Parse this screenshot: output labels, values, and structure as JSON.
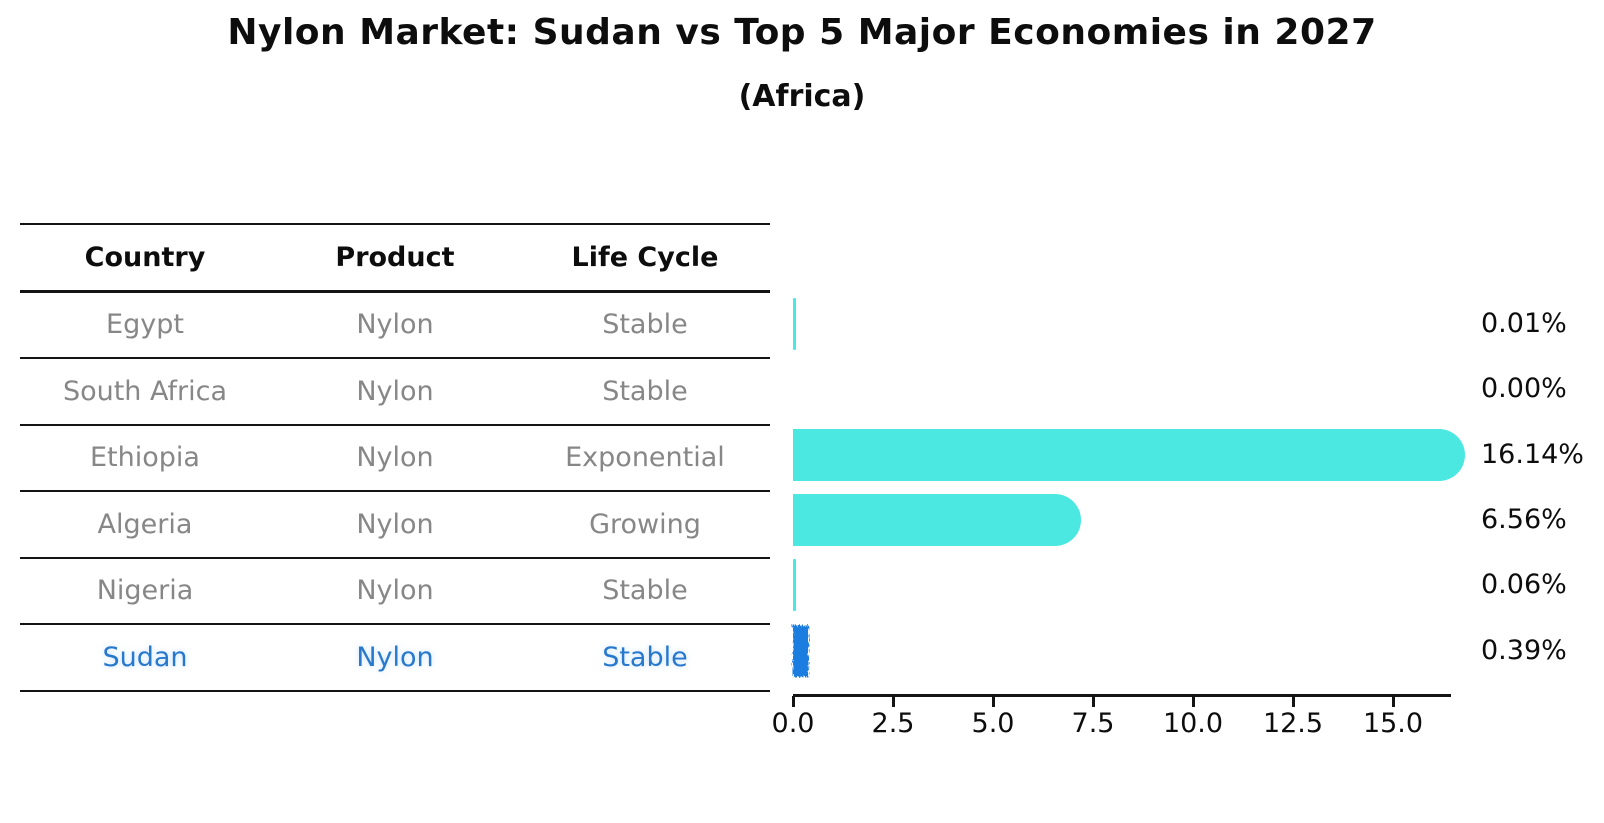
{
  "figure": {
    "title": "Nylon Market: Sudan vs Top 5 Major Economies in 2027",
    "subtitle": "(Africa)"
  },
  "colors": {
    "bar": "#4be8e1",
    "highlight_bar": "#1e7de0",
    "highlight_text": "#2878cc",
    "row_text": "#878787",
    "ink": "#141414"
  },
  "table": {
    "headers": [
      "Country",
      "Product",
      "Life Cycle"
    ],
    "rows": [
      {
        "country": "Egypt",
        "product": "Nylon",
        "life_cycle": "Stable",
        "highlight": false
      },
      {
        "country": "South Africa",
        "product": "Nylon",
        "life_cycle": "Stable",
        "highlight": false
      },
      {
        "country": "Ethiopia",
        "product": "Nylon",
        "life_cycle": "Exponential",
        "highlight": false
      },
      {
        "country": "Algeria",
        "product": "Nylon",
        "life_cycle": "Growing",
        "highlight": false
      },
      {
        "country": "Nigeria",
        "product": "Nylon",
        "life_cycle": "Stable",
        "highlight": false
      },
      {
        "country": "Sudan",
        "product": "Nylon",
        "life_cycle": "Stable",
        "highlight": true
      }
    ]
  },
  "chart_data": {
    "type": "bar",
    "orientation": "horizontal",
    "title": "Nylon Market: Sudan vs Top 5 Major Economies in 2027",
    "subtitle": "(Africa)",
    "categories": [
      "Egypt",
      "South Africa",
      "Ethiopia",
      "Algeria",
      "Nigeria",
      "Sudan"
    ],
    "values": [
      0.01,
      0.0,
      16.14,
      6.56,
      0.06,
      0.39
    ],
    "labels": [
      "0.01%",
      "0.00%",
      "16.14%",
      "6.56%",
      "0.06%",
      "0.39%"
    ],
    "highlight_category": "Sudan",
    "x_ticks": [
      "0.0",
      "2.5",
      "5.0",
      "7.5",
      "10.0",
      "12.5",
      "15.0"
    ],
    "x_tick_values": [
      0,
      2.5,
      5,
      7.5,
      10,
      12.5,
      15
    ],
    "xlim": [
      0,
      16.7
    ],
    "grid": false,
    "legend": false,
    "value_unit": "%"
  }
}
